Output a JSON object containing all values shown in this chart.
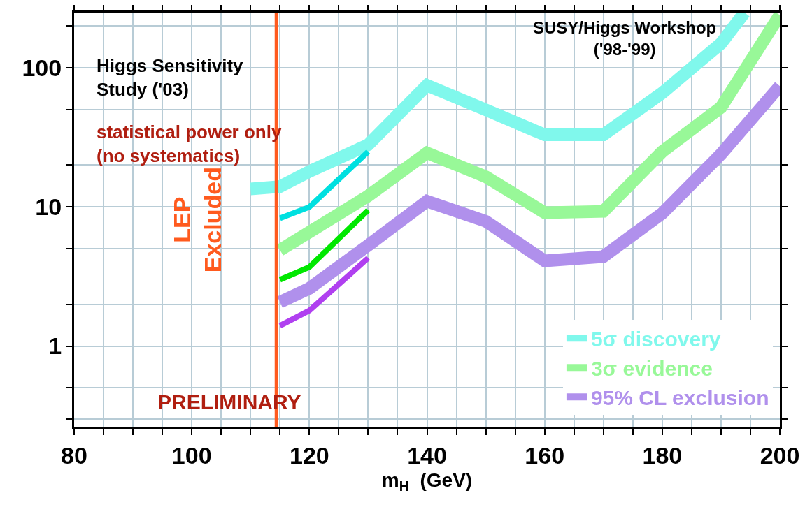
{
  "chart_data": {
    "type": "line",
    "xlabel": "m$_{H}$  (GeV)",
    "log": "y",
    "grid": true,
    "legend": "bottom right",
    "xlim": [
      80,
      200
    ],
    "ylim": [
      0.26,
      250
    ],
    "xticks": [
      80,
      {
        "value": 85,
        "label": null
      },
      {
        "value": 90,
        "label": null
      },
      {
        "value": 95,
        "label": null
      },
      100,
      {
        "value": 105,
        "label": null
      },
      {
        "value": 110,
        "label": null
      },
      {
        "value": 115,
        "label": null
      },
      120,
      {
        "value": 125,
        "label": null
      },
      {
        "value": 130,
        "label": null
      },
      {
        "value": 135,
        "label": null
      },
      140,
      {
        "value": 145,
        "label": null
      },
      {
        "value": 150,
        "label": null
      },
      {
        "value": 155,
        "label": null
      },
      160,
      {
        "value": 165,
        "label": null
      },
      {
        "value": 170,
        "label": null
      },
      {
        "value": 175,
        "label": null
      },
      180,
      {
        "value": 185,
        "label": null
      },
      {
        "value": 190,
        "label": null
      },
      {
        "value": 195,
        "label": null
      },
      200
    ],
    "yticks": [
      {
        "value": 0.3,
        "label": null
      },
      {
        "value": 0.5,
        "label": null
      },
      1,
      {
        "value": 2,
        "label": null
      },
      {
        "value": 5,
        "label": null
      },
      10,
      {
        "value": 20,
        "label": null
      },
      {
        "value": 50,
        "label": null
      },
      100,
      {
        "value": 200,
        "label": null
      }
    ],
    "series": [
      {
        "name": "5σ discovery",
        "color": "#80f8ec",
        "x": [
          110,
          115,
          120,
          130,
          140,
          150,
          160,
          170,
          180,
          190,
          194
        ],
        "values": [
          13.5,
          14,
          18,
          28,
          75,
          50,
          33,
          33,
          66,
          150,
          250
        ]
      },
      {
        "name": "3σ evidence",
        "color": "#98f898",
        "x": [
          115,
          120,
          130,
          140,
          150,
          160,
          170,
          180,
          190,
          200
        ],
        "values": [
          4.9,
          6.6,
          12,
          24.5,
          16.5,
          9.1,
          9.3,
          25,
          52,
          240
        ]
      },
      {
        "name": "95% CL exclusion",
        "color": "#b090ec",
        "x": [
          115,
          120,
          130,
          140,
          150,
          160,
          170,
          180,
          190,
          200
        ],
        "values": [
          2.07,
          2.6,
          5.3,
          11,
          7.9,
          4.1,
          4.4,
          9,
          24,
          74
        ]
      },
      {
        "color": "#00e0e0",
        "x": [
          115,
          120,
          130
        ],
        "values": [
          8.3,
          10,
          25
        ]
      },
      {
        "color": "#00e800",
        "x": [
          115,
          120,
          130
        ],
        "values": [
          3.0,
          3.7,
          9.5
        ]
      },
      {
        "color": "#b040f0",
        "x": [
          115,
          120,
          130
        ],
        "values": [
          1.4,
          1.8,
          4.3
        ]
      }
    ],
    "ref_lines": [
      {
        "axis": "x",
        "value": 114.4,
        "label": "LEP\nExcluded",
        "color": "#ff5a1e"
      }
    ],
    "annotations": [
      "Higgs Sensitivity\nStudy ('03)",
      "statistical power only\n(no systematics)",
      "PRELIMINARY",
      "SUSY/Higgs Workshop\n('98-'99)"
    ]
  }
}
